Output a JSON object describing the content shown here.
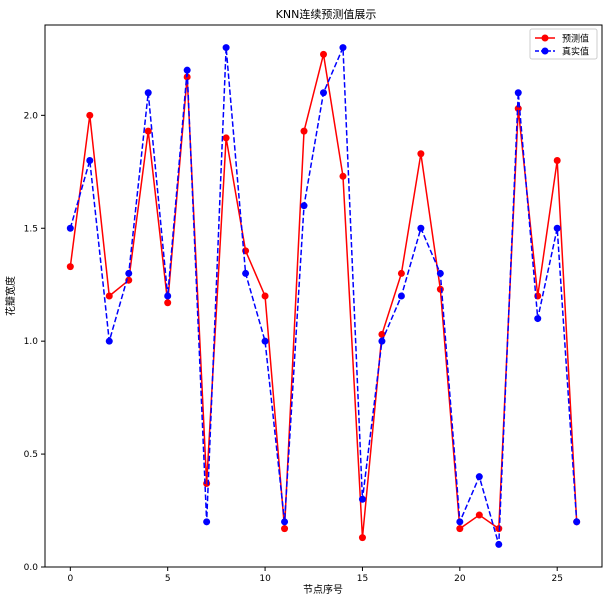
{
  "chart_data": {
    "type": "line",
    "title": "KNN连续预测值展示",
    "xlabel": "节点序号",
    "ylabel": "花瓣宽度",
    "xlim": [
      -1.3,
      27.3
    ],
    "ylim": [
      0.0,
      2.4
    ],
    "xticks": [
      0,
      5,
      10,
      15,
      20,
      25
    ],
    "yticks": [
      0.0,
      0.5,
      1.0,
      1.5,
      2.0
    ],
    "grid": false,
    "legend_position": "top-right",
    "x": [
      0,
      1,
      2,
      3,
      4,
      5,
      6,
      7,
      8,
      9,
      10,
      11,
      12,
      13,
      14,
      15,
      16,
      17,
      18,
      19,
      20,
      21,
      22,
      23,
      24,
      25,
      26
    ],
    "series": [
      {
        "name": "预测值",
        "color": "#ff0000",
        "linestyle": "solid",
        "marker": "circle",
        "values": [
          1.33,
          2.0,
          1.2,
          1.27,
          1.93,
          1.17,
          2.17,
          0.37,
          1.9,
          1.4,
          1.2,
          0.17,
          1.93,
          2.27,
          1.73,
          0.13,
          1.03,
          1.3,
          1.83,
          1.23,
          0.17,
          0.23,
          0.17,
          2.03,
          1.2,
          1.8,
          0.2
        ]
      },
      {
        "name": "真实值",
        "color": "#0000ff",
        "linestyle": "dashed",
        "marker": "circle",
        "values": [
          1.5,
          1.8,
          1.0,
          1.3,
          2.1,
          1.2,
          2.2,
          0.2,
          2.3,
          1.3,
          1.0,
          0.2,
          1.6,
          2.1,
          2.3,
          0.3,
          1.0,
          1.2,
          1.5,
          1.3,
          0.2,
          0.4,
          0.1,
          2.1,
          1.1,
          1.5,
          0.2
        ]
      }
    ]
  }
}
